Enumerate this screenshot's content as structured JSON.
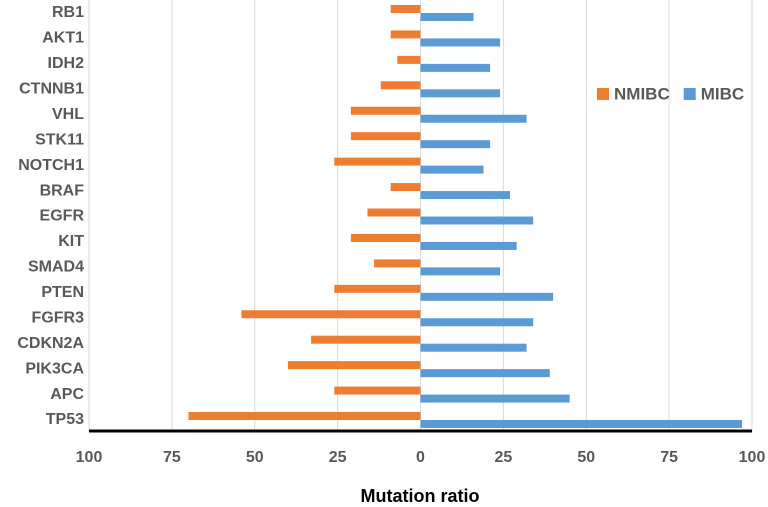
{
  "chart_data": {
    "type": "bar",
    "orientation": "horizontal",
    "x_label": "Mutation ratio",
    "categories": [
      "RB1",
      "AKT1",
      "IDH2",
      "CTNNB1",
      "VHL",
      "STK11",
      "NOTCH1",
      "BRAF",
      "EGFR",
      "KIT",
      "SMAD4",
      "PTEN",
      "FGFR3",
      "CDKN2A",
      "PIK3CA",
      "APC",
      "TP53"
    ],
    "series": [
      {
        "name": "NMIBC",
        "color": "#ED7D31",
        "values": [
          -9,
          -9,
          -7,
          -12,
          -21,
          -21,
          -26,
          -9,
          -16,
          -21,
          -14,
          -26,
          -54,
          -33,
          -40,
          -26,
          -70
        ]
      },
      {
        "name": "MIBC",
        "color": "#5B9BD5",
        "values": [
          16,
          24,
          21,
          24,
          32,
          21,
          19,
          27,
          34,
          29,
          24,
          40,
          34,
          32,
          39,
          45,
          97
        ]
      }
    ],
    "xlim": [
      -100,
      100
    ],
    "xticks": [
      {
        "value": -100,
        "label": "100"
      },
      {
        "value": -75,
        "label": "75"
      },
      {
        "value": -50,
        "label": "50"
      },
      {
        "value": -25,
        "label": "25"
      },
      0,
      25,
      50,
      75,
      100
    ],
    "grid": true,
    "legend": "upper right"
  }
}
